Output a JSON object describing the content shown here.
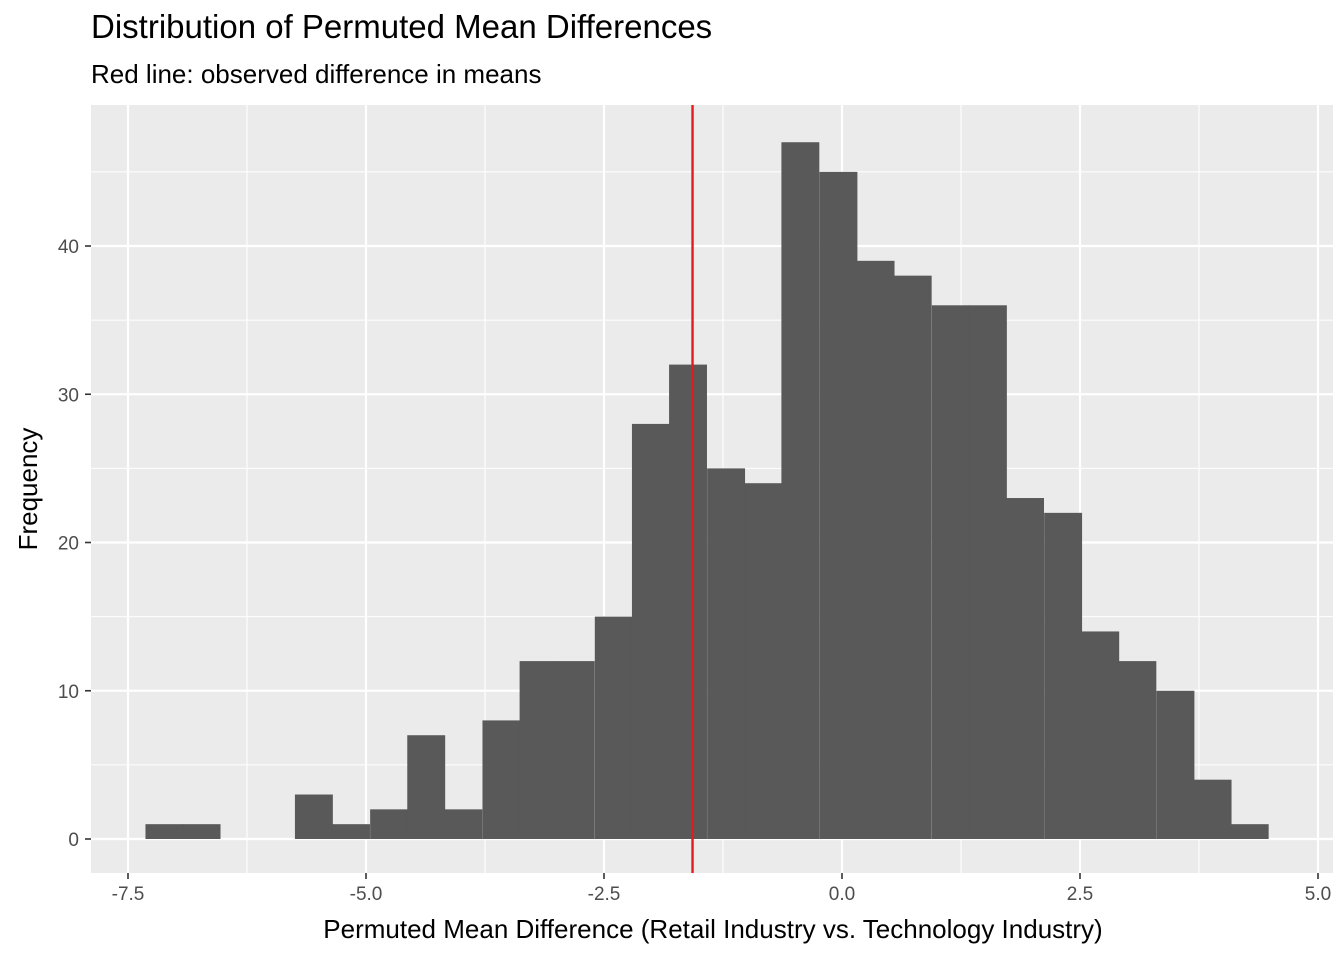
{
  "chart_data": {
    "type": "bar",
    "title": "Distribution of Permuted Mean Differences",
    "subtitle": "Red line: observed difference in means",
    "xlabel": "Permuted Mean Difference (Retail Industry vs. Technology Industry)",
    "ylabel": "Frequency",
    "xlim": [
      -7.5,
      5.0
    ],
    "ylim": [
      0,
      47
    ],
    "x_ticks": [
      -7.5,
      -5.0,
      -2.5,
      0.0,
      2.5,
      5.0
    ],
    "x_tick_labels": [
      "-7.5",
      "-5.0",
      "-2.5",
      "0.0",
      "2.5",
      "5.0"
    ],
    "y_ticks": [
      0,
      10,
      20,
      30,
      40
    ],
    "y_tick_labels": [
      "0",
      "10",
      "20",
      "30",
      "40"
    ],
    "grid": true,
    "bin_width": 0.393,
    "bin_centers": [
      -7.12,
      -6.73,
      -6.34,
      -5.94,
      -5.55,
      -5.16,
      -4.76,
      -4.37,
      -3.98,
      -3.58,
      -3.19,
      -2.8,
      -2.4,
      -2.01,
      -1.62,
      -1.22,
      -0.83,
      -0.44,
      -0.04,
      0.35,
      0.74,
      1.14,
      1.53,
      1.92,
      2.32,
      2.71,
      3.1,
      3.5,
      3.89,
      4.28
    ],
    "counts": [
      1,
      1,
      0,
      0,
      3,
      1,
      2,
      7,
      2,
      8,
      12,
      12,
      15,
      28,
      32,
      25,
      24,
      47,
      45,
      39,
      38,
      36,
      36,
      23,
      22,
      14,
      12,
      10,
      4,
      1
    ],
    "observed_difference": -1.57,
    "bar_color": "#595959",
    "line_color": "#e41a1c",
    "panel_color": "#ebebeb"
  }
}
